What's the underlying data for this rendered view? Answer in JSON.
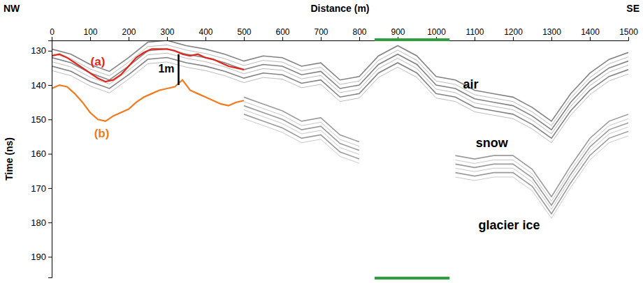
{
  "chart_data": {
    "type": "line",
    "x_label": "Distance (m)",
    "y_label": "Time (ns)",
    "corner_labels": {
      "left": "NW",
      "right": "SE"
    },
    "xlim": [
      0,
      1500
    ],
    "xticks": [
      0,
      100,
      200,
      300,
      400,
      500,
      600,
      700,
      800,
      900,
      1000,
      1100,
      1200,
      1300,
      1400,
      1500
    ],
    "ylim": [
      127,
      196
    ],
    "yticks": [
      130,
      140,
      150,
      160,
      170,
      180,
      190
    ],
    "series": [
      {
        "color": "#5a5a5a",
        "line_style": "band",
        "x": [
          0,
          50,
          100,
          150,
          200,
          250,
          300,
          350,
          400,
          450,
          500,
          550,
          600,
          650,
          700,
          750,
          800,
          850,
          900,
          950,
          1000,
          1050,
          1100,
          1150,
          1200,
          1250,
          1300,
          1350,
          1400,
          1450,
          1500
        ],
        "values": [
          132,
          133.5,
          136.5,
          138.5,
          134.5,
          130,
          129.5,
          131,
          132,
          133.5,
          135.5,
          134,
          134.5,
          137,
          136,
          141,
          140,
          134,
          131,
          134,
          140,
          141,
          144,
          145,
          146,
          149,
          153,
          145,
          139,
          135,
          133
        ]
      },
      {
        "color": "#7a7a7a",
        "line_style": "band",
        "x": [
          500,
          550,
          600,
          650,
          700,
          750,
          800,
          850,
          900,
          950,
          1000,
          1050,
          1100,
          1150,
          1200,
          1250,
          1300,
          1350,
          1400,
          1450,
          1500
        ],
        "values": [
          146,
          148,
          150,
          153,
          152,
          157,
          159,
          null,
          null,
          null,
          null,
          163,
          164,
          163,
          163,
          167,
          175,
          166,
          158,
          153,
          151
        ]
      },
      {
        "name": "(a)",
        "color": "#e0261b",
        "line_style": "solid",
        "x": [
          0,
          20,
          40,
          60,
          80,
          100,
          120,
          140,
          160,
          180,
          200,
          220,
          240,
          260,
          280,
          300,
          320,
          340,
          360,
          380,
          400,
          420,
          440,
          460,
          480,
          500
        ],
        "values": [
          131.5,
          131,
          132,
          133.5,
          135,
          136.5,
          138,
          139,
          138.5,
          137,
          134.5,
          132,
          130.5,
          129.5,
          129.5,
          129.5,
          130,
          131,
          131.5,
          131,
          132,
          132.5,
          133.5,
          134.5,
          135,
          135.5
        ]
      },
      {
        "name": "(b)",
        "color": "#f07a1e",
        "line_style": "solid",
        "x": [
          0,
          20,
          40,
          60,
          80,
          100,
          120,
          140,
          160,
          180,
          200,
          220,
          240,
          260,
          280,
          300,
          320,
          340,
          360,
          380,
          400,
          420,
          440,
          460,
          480,
          500
        ],
        "values": [
          141,
          140,
          140.5,
          142.5,
          145,
          148,
          150,
          150.5,
          149,
          148,
          147,
          145,
          143.5,
          142.5,
          141.5,
          141,
          140.5,
          138.5,
          141.5,
          142.5,
          143.5,
          144.5,
          145.5,
          146,
          145,
          144.5
        ]
      }
    ],
    "series_labels": [
      {
        "text": "(a)",
        "x": 120,
        "y": 133.3,
        "color": "#e0261b"
      },
      {
        "text": "(b)",
        "x": 130,
        "y": 154.3,
        "color": "#f07a1e"
      }
    ],
    "annotations": [
      {
        "text": "air",
        "x": 1090,
        "y": 140
      },
      {
        "text": "snow",
        "x": 1145,
        "y": 157
      },
      {
        "text": "glacier ice",
        "x": 1190,
        "y": 181
      }
    ],
    "scale_bar": {
      "label": "1m",
      "x": 330,
      "y": [
        131,
        140
      ]
    },
    "highlight_range": [
      840,
      1035
    ],
    "highlight_color": "#2e9e3e"
  }
}
